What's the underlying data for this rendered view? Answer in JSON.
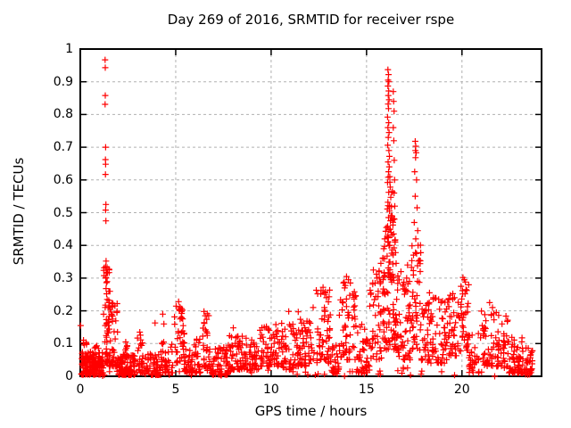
{
  "title": "Day 269 of 2016, SRMTID for receiver rspe",
  "x_axis": {
    "label": "GPS time / hours",
    "min": 0,
    "max": 24.17,
    "ticks": [
      0,
      5,
      10,
      15,
      20
    ],
    "tick_labels": [
      "0",
      "5",
      "10",
      "15",
      "20"
    ]
  },
  "y_axis": {
    "label": "SRMTID / TECUs",
    "min": 0,
    "max": 1,
    "ticks": [
      0,
      0.1,
      0.2,
      0.3,
      0.4,
      0.5,
      0.6,
      0.7,
      0.8,
      0.9,
      1
    ],
    "tick_labels": [
      "0",
      "0.1",
      "0.2",
      "0.3",
      "0.4",
      "0.5",
      "0.6",
      "0.7",
      "0.8",
      "0.9",
      "1"
    ]
  },
  "style": {
    "marker_color": "#ff0000",
    "grid_color": "#b0b0b0",
    "border_color": "#000000",
    "background": "#ffffff"
  },
  "chart_data": {
    "type": "scatter",
    "marker": "plus",
    "grid": true,
    "legend": "none",
    "xlim": [
      0,
      24.17
    ],
    "ylim": [
      0,
      1
    ],
    "points": [
      [
        0.02,
        0.155
      ],
      [
        1.3,
        0.967
      ],
      [
        1.31,
        0.943
      ],
      [
        1.31,
        0.858
      ],
      [
        1.3,
        0.831
      ],
      [
        1.33,
        0.7
      ],
      [
        1.32,
        0.662
      ],
      [
        1.33,
        0.648
      ],
      [
        1.32,
        0.617
      ],
      [
        1.34,
        0.525
      ],
      [
        1.33,
        0.508
      ],
      [
        1.34,
        0.475
      ],
      [
        1.35,
        0.352
      ],
      [
        1.33,
        0.335
      ],
      [
        1.36,
        0.318
      ],
      [
        1.34,
        0.302
      ],
      [
        1.37,
        0.286
      ],
      [
        1.35,
        0.268
      ],
      [
        1.38,
        0.252
      ],
      [
        1.52,
        0.225
      ],
      [
        1.56,
        0.205
      ],
      [
        1.62,
        0.19
      ],
      [
        1.68,
        0.175
      ],
      [
        2.38,
        0.105
      ],
      [
        3.12,
        0.135
      ],
      [
        3.92,
        0.163
      ],
      [
        4.32,
        0.19
      ],
      [
        4.38,
        0.16
      ],
      [
        5.15,
        0.228
      ],
      [
        5.22,
        0.212
      ],
      [
        5.3,
        0.198
      ],
      [
        6.48,
        0.198
      ],
      [
        6.55,
        0.185
      ],
      [
        8.02,
        0.148
      ],
      [
        9.75,
        0.152
      ],
      [
        10.25,
        0.158
      ],
      [
        10.92,
        0.198
      ],
      [
        11.42,
        0.197
      ],
      [
        12.05,
        0.162
      ],
      [
        12.2,
        0.21
      ],
      [
        12.62,
        0.262
      ],
      [
        12.72,
        0.272
      ],
      [
        12.82,
        0.255
      ],
      [
        12.9,
        0.24
      ],
      [
        13.85,
        0.27
      ],
      [
        13.95,
        0.305
      ],
      [
        14.05,
        0.295
      ],
      [
        14.15,
        0.285
      ],
      [
        15.45,
        0.285
      ],
      [
        15.55,
        0.3
      ],
      [
        15.65,
        0.32
      ],
      [
        15.75,
        0.345
      ],
      [
        16.12,
        0.937
      ],
      [
        16.15,
        0.922
      ],
      [
        16.13,
        0.905
      ],
      [
        16.17,
        0.9
      ],
      [
        16.12,
        0.887
      ],
      [
        16.16,
        0.872
      ],
      [
        16.14,
        0.858
      ],
      [
        16.18,
        0.845
      ],
      [
        16.13,
        0.832
      ],
      [
        16.15,
        0.818
      ],
      [
        16.1,
        0.792
      ],
      [
        16.16,
        0.775
      ],
      [
        16.12,
        0.76
      ],
      [
        16.18,
        0.745
      ],
      [
        16.14,
        0.73
      ],
      [
        16.11,
        0.706
      ],
      [
        16.17,
        0.69
      ],
      [
        16.2,
        0.672
      ],
      [
        16.13,
        0.655
      ],
      [
        16.19,
        0.64
      ],
      [
        16.15,
        0.625
      ],
      [
        16.22,
        0.61
      ],
      [
        16.1,
        0.592
      ],
      [
        16.24,
        0.578
      ],
      [
        16.16,
        0.562
      ],
      [
        16.27,
        0.547
      ],
      [
        16.12,
        0.532
      ],
      [
        16.3,
        0.518
      ],
      [
        16.2,
        0.505
      ],
      [
        16.34,
        0.49
      ],
      [
        16.25,
        0.475
      ],
      [
        16.38,
        0.462
      ],
      [
        16.18,
        0.448
      ],
      [
        16.42,
        0.435
      ],
      [
        16.4,
        0.87
      ],
      [
        16.42,
        0.84
      ],
      [
        16.44,
        0.81
      ],
      [
        16.4,
        0.76
      ],
      [
        16.43,
        0.72
      ],
      [
        16.45,
        0.66
      ],
      [
        16.47,
        0.6
      ],
      [
        16.44,
        0.56
      ],
      [
        16.48,
        0.52
      ],
      [
        16.46,
        0.48
      ],
      [
        15.95,
        0.42
      ],
      [
        16.5,
        0.41
      ],
      [
        15.9,
        0.39
      ],
      [
        16.52,
        0.378
      ],
      [
        15.85,
        0.36
      ],
      [
        16.55,
        0.345
      ],
      [
        16.8,
        0.32
      ],
      [
        16.9,
        0.28
      ],
      [
        17.1,
        0.3
      ],
      [
        17.15,
        0.34
      ],
      [
        17.55,
        0.718
      ],
      [
        17.58,
        0.703
      ],
      [
        17.56,
        0.69
      ],
      [
        17.6,
        0.683
      ],
      [
        17.57,
        0.668
      ],
      [
        17.52,
        0.625
      ],
      [
        17.62,
        0.6
      ],
      [
        17.55,
        0.55
      ],
      [
        17.65,
        0.515
      ],
      [
        17.5,
        0.47
      ],
      [
        17.68,
        0.445
      ],
      [
        17.58,
        0.42
      ],
      [
        17.7,
        0.4
      ],
      [
        17.62,
        0.375
      ],
      [
        17.72,
        0.352
      ],
      [
        18.3,
        0.255
      ],
      [
        18.5,
        0.24
      ],
      [
        18.9,
        0.225
      ],
      [
        19.95,
        0.275
      ],
      [
        20.05,
        0.302
      ],
      [
        20.12,
        0.295
      ],
      [
        20.18,
        0.288
      ],
      [
        20.25,
        0.262
      ],
      [
        21.45,
        0.225
      ],
      [
        21.6,
        0.21
      ],
      [
        21.8,
        0.195
      ]
    ],
    "noise_clusters": [
      [
        0.05,
        1.2,
        170,
        0.005,
        0.075,
        1.8
      ],
      [
        0.1,
        0.6,
        20,
        0.04,
        0.115,
        1.5
      ],
      [
        0.75,
        1.05,
        14,
        0.03,
        0.1,
        1.5
      ],
      [
        1.22,
        1.55,
        50,
        0.04,
        0.34,
        1.3
      ],
      [
        1.5,
        1.95,
        45,
        0.03,
        0.23,
        1.8
      ],
      [
        1.95,
        2.9,
        95,
        0.004,
        0.065,
        1.8
      ],
      [
        2.25,
        2.5,
        10,
        0.05,
        0.105,
        1.5
      ],
      [
        2.95,
        3.35,
        28,
        0.01,
        0.135,
        1.6
      ],
      [
        3.35,
        4.25,
        60,
        0.004,
        0.075,
        1.8
      ],
      [
        4.25,
        4.85,
        35,
        0.01,
        0.125,
        1.7
      ],
      [
        4.9,
        5.45,
        40,
        0.04,
        0.225,
        1.4
      ],
      [
        5.45,
        6.3,
        55,
        0.01,
        0.12,
        1.8
      ],
      [
        6.35,
        6.8,
        30,
        0.03,
        0.2,
        1.5
      ],
      [
        6.8,
        7.75,
        60,
        0.005,
        0.09,
        1.8
      ],
      [
        7.75,
        8.45,
        45,
        0.02,
        0.13,
        1.7
      ],
      [
        8.45,
        9.35,
        55,
        0.02,
        0.125,
        1.7
      ],
      [
        9.4,
        10.45,
        65,
        0.03,
        0.15,
        1.6
      ],
      [
        10.5,
        11.15,
        42,
        0.02,
        0.17,
        1.6
      ],
      [
        11.15,
        12.25,
        70,
        0.03,
        0.175,
        1.6
      ],
      [
        12.35,
        13.15,
        55,
        0.04,
        0.27,
        1.5
      ],
      [
        13.15,
        13.55,
        25,
        0.01,
        0.11,
        1.6
      ],
      [
        13.55,
        14.45,
        60,
        0.05,
        0.3,
        1.5
      ],
      [
        14.45,
        15.15,
        45,
        0.01,
        0.17,
        1.6
      ],
      [
        15.15,
        15.8,
        45,
        0.05,
        0.33,
        1.4
      ],
      [
        15.8,
        16.65,
        90,
        0.08,
        0.45,
        1.3
      ],
      [
        16.0,
        16.45,
        30,
        0.3,
        0.62,
        1.2
      ],
      [
        16.65,
        17.3,
        45,
        0.05,
        0.3,
        1.5
      ],
      [
        17.3,
        17.85,
        45,
        0.08,
        0.45,
        1.3
      ],
      [
        17.85,
        19.3,
        90,
        0.04,
        0.24,
        1.6
      ],
      [
        19.3,
        20.0,
        45,
        0.06,
        0.26,
        1.4
      ],
      [
        19.95,
        20.35,
        30,
        0.08,
        0.295,
        1.3
      ],
      [
        20.35,
        20.95,
        30,
        0.01,
        0.15,
        1.7
      ],
      [
        20.95,
        22.4,
        85,
        0.03,
        0.2,
        1.6
      ],
      [
        22.4,
        23.15,
        50,
        0.01,
        0.12,
        1.7
      ],
      [
        23.15,
        23.7,
        40,
        0.005,
        0.09,
        1.6
      ],
      [
        0.05,
        23.4,
        60,
        0.0,
        0.03,
        1.0
      ]
    ],
    "seed": 269
  }
}
